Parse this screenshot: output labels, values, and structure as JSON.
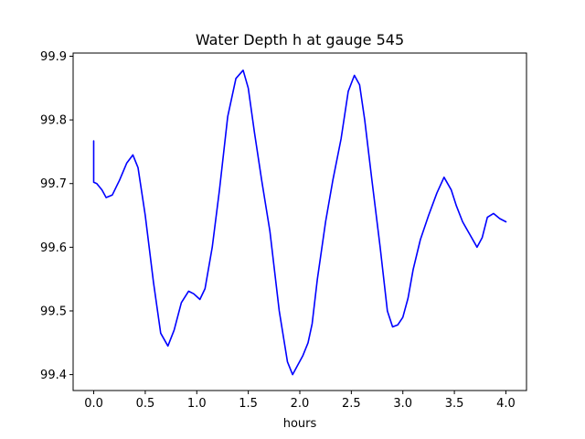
{
  "chart_data": {
    "type": "line",
    "title": "Water Depth h at gauge 545",
    "xlabel": "hours",
    "ylabel": "",
    "xlim": [
      -0.2,
      4.2
    ],
    "ylim": [
      99.375,
      99.905
    ],
    "xticks": [
      0.0,
      0.5,
      1.0,
      1.5,
      2.0,
      2.5,
      3.0,
      3.5,
      4.0
    ],
    "xtick_labels": [
      "0.0",
      "0.5",
      "1.0",
      "1.5",
      "2.0",
      "2.5",
      "3.0",
      "3.5",
      "4.0"
    ],
    "yticks": [
      99.4,
      99.5,
      99.6,
      99.7,
      99.8,
      99.9
    ],
    "ytick_labels": [
      "99.4",
      "99.5",
      "99.6",
      "99.7",
      "99.8",
      "99.9"
    ],
    "grid": false,
    "series": [
      {
        "color": "#0000ff",
        "x": [
          0.0,
          0.0,
          0.03,
          0.08,
          0.12,
          0.18,
          0.25,
          0.32,
          0.38,
          0.43,
          0.5,
          0.58,
          0.65,
          0.72,
          0.78,
          0.85,
          0.92,
          0.97,
          1.03,
          1.08,
          1.15,
          1.22,
          1.3,
          1.38,
          1.45,
          1.5,
          1.56,
          1.63,
          1.71,
          1.8,
          1.88,
          1.93,
          1.98,
          2.03,
          2.08,
          2.12,
          2.17,
          2.25,
          2.32,
          2.4,
          2.47,
          2.53,
          2.58,
          2.63,
          2.7,
          2.78,
          2.85,
          2.9,
          2.95,
          3.0,
          3.05,
          3.1,
          3.17,
          3.25,
          3.33,
          3.4,
          3.47,
          3.52,
          3.58,
          3.65,
          3.72,
          3.77,
          3.82,
          3.88,
          3.94,
          4.0
        ],
        "y": [
          99.767,
          99.702,
          99.7,
          99.69,
          99.678,
          99.682,
          99.705,
          99.732,
          99.745,
          99.725,
          99.65,
          99.545,
          99.465,
          99.445,
          99.47,
          99.513,
          99.531,
          99.527,
          99.518,
          99.535,
          99.6,
          99.69,
          99.805,
          99.865,
          99.878,
          99.85,
          99.78,
          99.705,
          99.625,
          99.5,
          99.42,
          99.4,
          99.415,
          99.43,
          99.45,
          99.48,
          99.55,
          99.64,
          99.705,
          99.77,
          99.845,
          99.87,
          99.855,
          99.8,
          99.705,
          99.6,
          99.5,
          99.475,
          99.478,
          99.49,
          99.52,
          99.565,
          99.612,
          99.65,
          99.685,
          99.71,
          99.69,
          99.665,
          99.64,
          99.62,
          99.6,
          99.615,
          99.647,
          99.653,
          99.645,
          99.64
        ]
      }
    ]
  }
}
